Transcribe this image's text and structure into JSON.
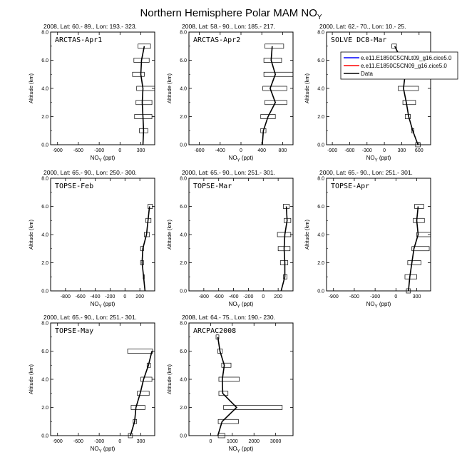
{
  "figure": {
    "title_main": "Northern Hemisphere Polar MAM NO",
    "title_sub": "Y"
  },
  "legend": {
    "entries": [
      {
        "label": "e.e11.E1850C5CNLt09_g16.cice5.0",
        "color": "#0000ff"
      },
      {
        "label": "e.e11.E1850C5CN09_g16.cice5.0",
        "color": "#ff0000"
      },
      {
        "label": "Data",
        "color": "#000000"
      }
    ]
  },
  "chart_data": [
    {
      "type": "line",
      "name": "ARCTAS-Apr1",
      "header": "2008, Lat:  60.- 89., Lon: 193.- 323.",
      "xlabel_main": "NO",
      "xlabel_sub": "Y",
      "xlabel_unit": " (ppt)",
      "ylabel": "Altitude (km)",
      "xlim": [
        -1000,
        500
      ],
      "xticks": [
        -900,
        -600,
        -300,
        0,
        300
      ],
      "ylim": [
        0,
        8
      ],
      "yticks": [
        "0.0",
        "2.0",
        "4.0",
        "6.0",
        "8.0"
      ],
      "data_line": [
        [
          330,
          0
        ],
        [
          340,
          1
        ],
        [
          330,
          2
        ],
        [
          320,
          3
        ],
        [
          330,
          4
        ],
        [
          300,
          5
        ],
        [
          310,
          6
        ],
        [
          350,
          7
        ]
      ],
      "boxes": [
        [
          280,
          400,
          1
        ],
        [
          210,
          460,
          2
        ],
        [
          230,
          460,
          3
        ],
        [
          240,
          500,
          4
        ],
        [
          180,
          350,
          5
        ],
        [
          200,
          420,
          6
        ],
        [
          260,
          440,
          7
        ]
      ]
    },
    {
      "type": "line",
      "name": "ARCTAS-Apr2",
      "header": "2008, Lat:  58.- 90., Lon: 185.- 217.",
      "xlabel_main": "NO",
      "xlabel_sub": "Y",
      "xlabel_unit": " (ppt)",
      "ylabel": "Altitude (km)",
      "xlim": [
        -1000,
        1000
      ],
      "xticks": [
        -800,
        -400,
        0,
        400,
        800
      ],
      "ylim": [
        0,
        8
      ],
      "yticks": [
        "0.0",
        "2.0",
        "4.0",
        "6.0",
        "8.0"
      ],
      "data_line": [
        [
          410,
          0
        ],
        [
          430,
          1
        ],
        [
          520,
          2
        ],
        [
          660,
          3
        ],
        [
          560,
          4
        ],
        [
          660,
          5
        ],
        [
          580,
          6
        ],
        [
          600,
          7
        ]
      ],
      "boxes": [
        [
          380,
          480,
          1
        ],
        [
          380,
          660,
          2
        ],
        [
          460,
          880,
          3
        ],
        [
          420,
          880,
          4
        ],
        [
          440,
          1000,
          5
        ],
        [
          440,
          780,
          6
        ],
        [
          460,
          820,
          7
        ]
      ]
    },
    {
      "type": "line",
      "name": "SOLVE DC8-Mar",
      "header": "2000, Lat:  62.- 70., Lon:  10.- 25.",
      "xlabel_main": "NO",
      "xlabel_sub": "Y",
      "xlabel_unit": " (ppt)",
      "ylabel": "Altitude (km)",
      "xlim": [
        -1000,
        800
      ],
      "xticks": [
        -900,
        -600,
        -300,
        0,
        300,
        600
      ],
      "ylim": [
        0,
        8
      ],
      "yticks": [
        "0.0",
        "2.0",
        "4.0",
        "6.0",
        "8.0"
      ],
      "data_line": [
        [
          580,
          0
        ],
        [
          490,
          1
        ],
        [
          420,
          2
        ],
        [
          380,
          3
        ],
        [
          330,
          4
        ],
        [
          360,
          5
        ],
        [
          300,
          6
        ],
        [
          180,
          7
        ]
      ],
      "boxes": [
        [
          540,
          620,
          0
        ],
        [
          470,
          510,
          1
        ],
        [
          360,
          450,
          2
        ],
        [
          320,
          540,
          3
        ],
        [
          240,
          590,
          4
        ],
        [
          300,
          720,
          5
        ],
        [
          300,
          740,
          6
        ],
        [
          130,
          210,
          7
        ]
      ]
    },
    {
      "type": "line",
      "name": "TOPSE-Feb",
      "header": "2000, Lat:  65.- 90., Lon: 250.- 300.",
      "xlabel_main": "NO",
      "xlabel_sub": "Y",
      "xlabel_unit": " (ppt)",
      "ylabel": "Altitude (km)",
      "xlim": [
        -1000,
        400
      ],
      "xticks": [
        -800,
        -600,
        -400,
        -200,
        0,
        200
      ],
      "ylim": [
        0,
        8
      ],
      "yticks": [
        "0.0",
        "2.0",
        "4.0",
        "6.0",
        "8.0"
      ],
      "data_line": [
        [
          270,
          0
        ],
        [
          250,
          1
        ],
        [
          230,
          2
        ],
        [
          240,
          3
        ],
        [
          290,
          4
        ],
        [
          310,
          5
        ],
        [
          330,
          6
        ]
      ],
      "boxes": [
        [
          245,
          260,
          1
        ],
        [
          210,
          250,
          2
        ],
        [
          210,
          250,
          3
        ],
        [
          260,
          330,
          4
        ],
        [
          280,
          350,
          5
        ],
        [
          310,
          370,
          6
        ]
      ]
    },
    {
      "type": "line",
      "name": "TOPSE-Mar",
      "header": "2000, Lat:  65.- 90., Lon: 251.- 301.",
      "xlabel_main": "NO",
      "xlabel_sub": "Y",
      "xlabel_unit": " (ppt)",
      "ylabel": "Altitude (km)",
      "xlim": [
        -1000,
        400
      ],
      "xticks": [
        -800,
        -600,
        -400,
        -200,
        0,
        200
      ],
      "ylim": [
        0,
        8
      ],
      "yticks": [
        "0.0",
        "2.0",
        "4.0",
        "6.0",
        "8.0"
      ],
      "data_line": [
        [
          240,
          0
        ],
        [
          290,
          1
        ],
        [
          290,
          2
        ],
        [
          280,
          3
        ],
        [
          290,
          4
        ],
        [
          320,
          5
        ],
        [
          310,
          6
        ]
      ],
      "boxes": [
        [
          270,
          320,
          1
        ],
        [
          230,
          330,
          2
        ],
        [
          200,
          360,
          3
        ],
        [
          190,
          370,
          4
        ],
        [
          280,
          370,
          5
        ],
        [
          270,
          350,
          6
        ]
      ]
    },
    {
      "type": "line",
      "name": "TOPSE-Apr",
      "header": "2000, Lat:  65.- 90., Lon: 251.- 301.",
      "xlabel_main": "NO",
      "xlabel_sub": "Y",
      "xlabel_unit": " (ppt)",
      "ylabel": "Altitude (km)",
      "xlim": [
        -1000,
        500
      ],
      "xticks": [
        -900,
        -600,
        -300,
        0,
        300
      ],
      "ylim": [
        0,
        8
      ],
      "yticks": [
        "0.0",
        "2.0",
        "4.0",
        "6.0",
        "8.0"
      ],
      "data_line": [
        [
          180,
          0
        ],
        [
          200,
          1
        ],
        [
          230,
          2
        ],
        [
          260,
          3
        ],
        [
          320,
          4
        ],
        [
          300,
          5
        ],
        [
          320,
          6
        ]
      ],
      "boxes": [
        [
          150,
          210,
          0
        ],
        [
          130,
          300,
          1
        ],
        [
          170,
          360,
          2
        ],
        [
          230,
          480,
          3
        ],
        [
          300,
          500,
          4
        ],
        [
          250,
          410,
          5
        ],
        [
          270,
          400,
          6
        ]
      ]
    },
    {
      "type": "line",
      "name": "TOPSE-May",
      "header": "2000, Lat:  65.- 90., Lon: 251.- 301.",
      "xlabel_main": "NO",
      "xlabel_sub": "Y",
      "xlabel_unit": " (ppt)",
      "ylabel": "Altitude (km)",
      "xlim": [
        -1000,
        500
      ],
      "xticks": [
        -900,
        -600,
        -300,
        0,
        300
      ],
      "ylim": [
        0,
        8
      ],
      "yticks": [
        "0.0",
        "2.0",
        "4.0",
        "6.0",
        "8.0"
      ],
      "data_line": [
        [
          150,
          0
        ],
        [
          210,
          1
        ],
        [
          230,
          2
        ],
        [
          290,
          3
        ],
        [
          340,
          4
        ],
        [
          410,
          5
        ],
        [
          460,
          6
        ]
      ],
      "boxes": [
        [
          120,
          180,
          0
        ],
        [
          190,
          240,
          1
        ],
        [
          160,
          360,
          2
        ],
        [
          250,
          420,
          3
        ],
        [
          300,
          460,
          4
        ],
        [
          390,
          440,
          5
        ],
        [
          110,
          470,
          6
        ]
      ]
    },
    {
      "type": "line",
      "name": "ARCPAC2008",
      "header": "2008, Lat:  64.- 75., Lon: 190.- 230.",
      "xlabel_main": "NO",
      "xlabel_sub": "Y",
      "xlabel_unit": " (ppt)",
      "ylabel": "Altitude (km)",
      "xlim": [
        -1000,
        3800
      ],
      "xticks": [
        0,
        1000,
        2000,
        3000
      ],
      "ylim": [
        0,
        8
      ],
      "yticks": [
        "0.0",
        "2.0",
        "4.0",
        "6.0",
        "8.0"
      ],
      "data_line": [
        [
          330,
          0
        ],
        [
          530,
          1
        ],
        [
          1200,
          2
        ],
        [
          560,
          3
        ],
        [
          540,
          4
        ],
        [
          630,
          5
        ],
        [
          430,
          6
        ],
        [
          330,
          7
        ]
      ],
      "boxes": [
        [
          350,
          660,
          0
        ],
        [
          350,
          1280,
          1
        ],
        [
          600,
          3300,
          2
        ],
        [
          380,
          800,
          3
        ],
        [
          380,
          1320,
          4
        ],
        [
          510,
          940,
          5
        ],
        [
          330,
          540,
          6
        ],
        [
          250,
          380,
          7
        ]
      ]
    }
  ]
}
